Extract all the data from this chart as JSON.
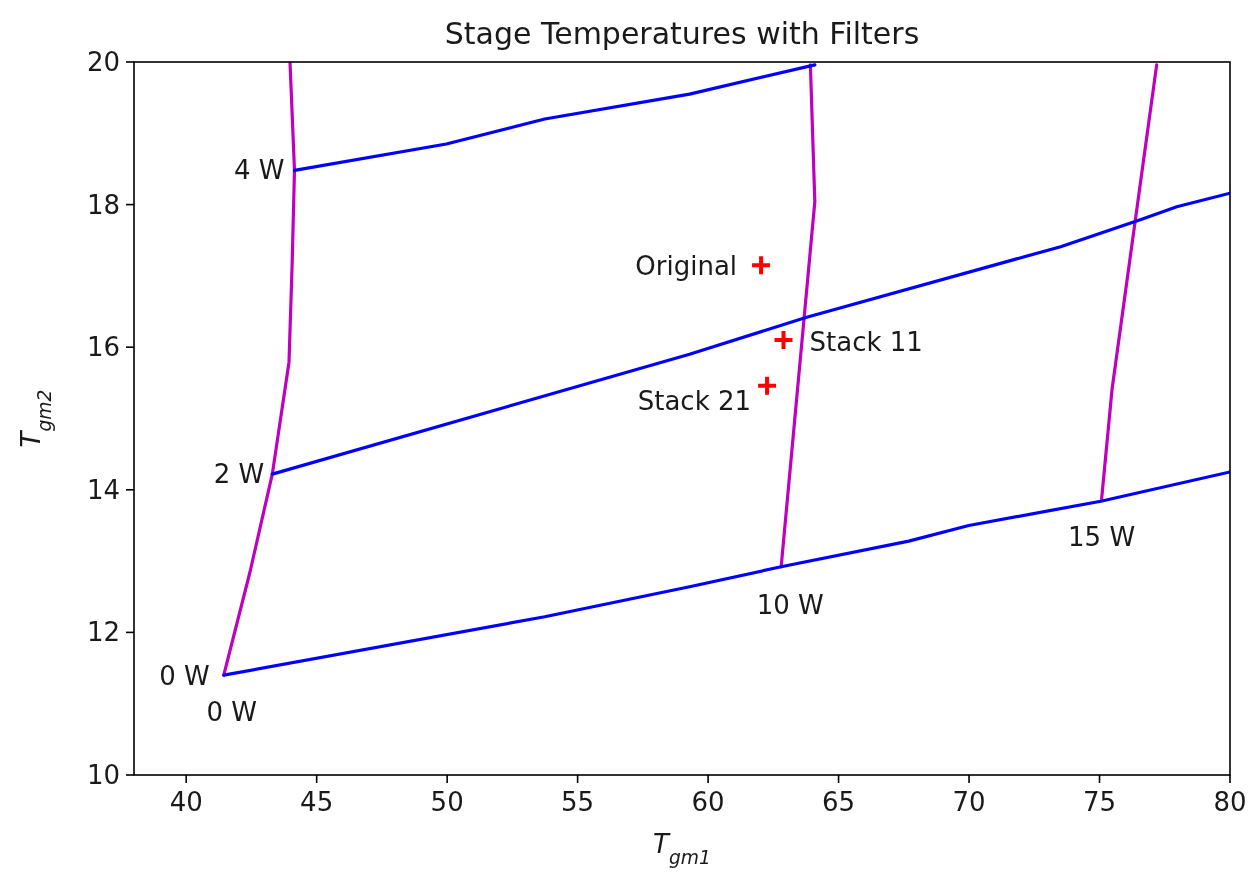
{
  "chart_data": {
    "type": "line",
    "title": "Stage Temperatures with Filters",
    "xlabel": "T$_{gm1}$",
    "ylabel": "T$_{gm2}$",
    "xlim": [
      38,
      80
    ],
    "ylim": [
      10,
      20
    ],
    "xticks": [
      40,
      45,
      50,
      55,
      60,
      65,
      70,
      75,
      80
    ],
    "yticks": [
      10,
      12,
      14,
      16,
      18,
      20
    ],
    "grid": false,
    "series": [
      {
        "color": "#bf00bf",
        "x": [
          41.44,
          42.44,
          43.3,
          43.94,
          44.06,
          44.15,
          43.98
        ],
        "values": [
          11.4,
          12.84,
          14.22,
          15.79,
          17.16,
          18.48,
          19.98
        ]
      },
      {
        "color": "#bf00bf",
        "x": [
          62.8,
          64.09,
          63.92
        ],
        "values": [
          12.92,
          18.04,
          19.96
        ]
      },
      {
        "color": "#bf00bf",
        "x": [
          75.08,
          75.48,
          77.19
        ],
        "values": [
          13.87,
          15.41,
          19.96
        ]
      },
      {
        "color": "#0000ff",
        "x": [
          41.44,
          53.74,
          59.29,
          62.8,
          67.69,
          69.99,
          75.05,
          80.0
        ],
        "values": [
          11.4,
          12.22,
          12.64,
          12.92,
          13.28,
          13.5,
          13.84,
          14.25
        ]
      },
      {
        "color": "#0000ff",
        "x": [
          43.3,
          59.29,
          63.78,
          73.51,
          76.59,
          77.96,
          80.0
        ],
        "values": [
          14.22,
          15.9,
          16.42,
          17.41,
          17.79,
          17.97,
          18.16
        ]
      },
      {
        "color": "#0000ff",
        "x": [
          44.15,
          49.97,
          53.74,
          59.29,
          64.09
        ],
        "values": [
          18.48,
          18.85,
          19.2,
          19.55,
          19.96
        ]
      },
      {
        "type": "scatter",
        "marker": "cross",
        "color": "#ff0000",
        "x": [
          62.03,
          62.89,
          62.26
        ],
        "values": [
          17.15,
          16.1,
          15.46
        ]
      }
    ],
    "annotations": [
      {
        "text": "4 W",
        "x": 44.15,
        "y": 18.48
      },
      {
        "text": "2 W",
        "x": 43.3,
        "y": 14.22
      },
      {
        "text": "0 W",
        "x": 41.44,
        "y": 11.4
      },
      {
        "text": "0 W",
        "x": 41.44,
        "y": 11.4
      },
      {
        "text": "10 W",
        "x": 62.8,
        "y": 12.92
      },
      {
        "text": "15 W",
        "x": 75.08,
        "y": 13.87
      },
      {
        "text": "Original",
        "x": 62.03,
        "y": 17.15
      },
      {
        "text": "Stack 11",
        "x": 62.89,
        "y": 16.1
      },
      {
        "text": "Stack 21",
        "x": 62.26,
        "y": 15.46
      }
    ]
  }
}
